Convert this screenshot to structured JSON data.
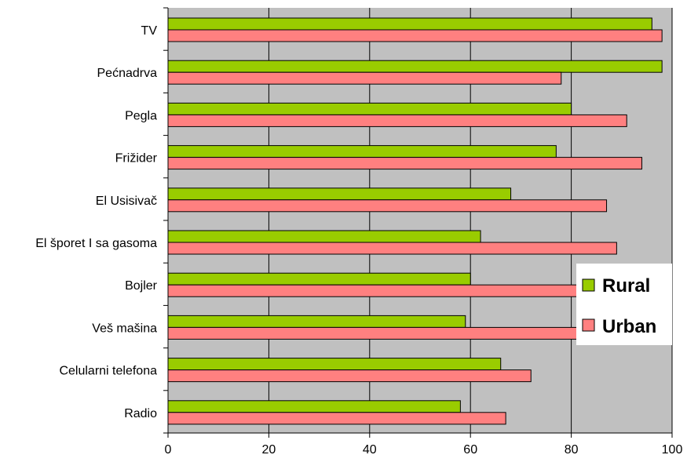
{
  "chart_data": {
    "type": "bar",
    "orientation": "horizontal",
    "categories": [
      "TV",
      "Pećnadrva",
      "Pegla",
      "Frižider",
      "El Usisivač",
      "El šporet I sa gasoma",
      "Bojler",
      "Veš mašina",
      "Celularni telefona",
      "Radio"
    ],
    "series": [
      {
        "name": "Rural",
        "color": "#99cc00",
        "values": [
          96,
          98,
          80,
          77,
          68,
          62,
          60,
          59,
          66,
          58
        ]
      },
      {
        "name": "Urban",
        "color": "#ff8080",
        "values": [
          98,
          78,
          91,
          94,
          87,
          89,
          83,
          84,
          72,
          67
        ]
      }
    ],
    "xlim": [
      0,
      100
    ],
    "xticks": [
      0,
      20,
      40,
      60,
      80,
      100
    ],
    "grid": "vertical",
    "plot_background": "#c0c0c0",
    "legend_position": "right"
  }
}
